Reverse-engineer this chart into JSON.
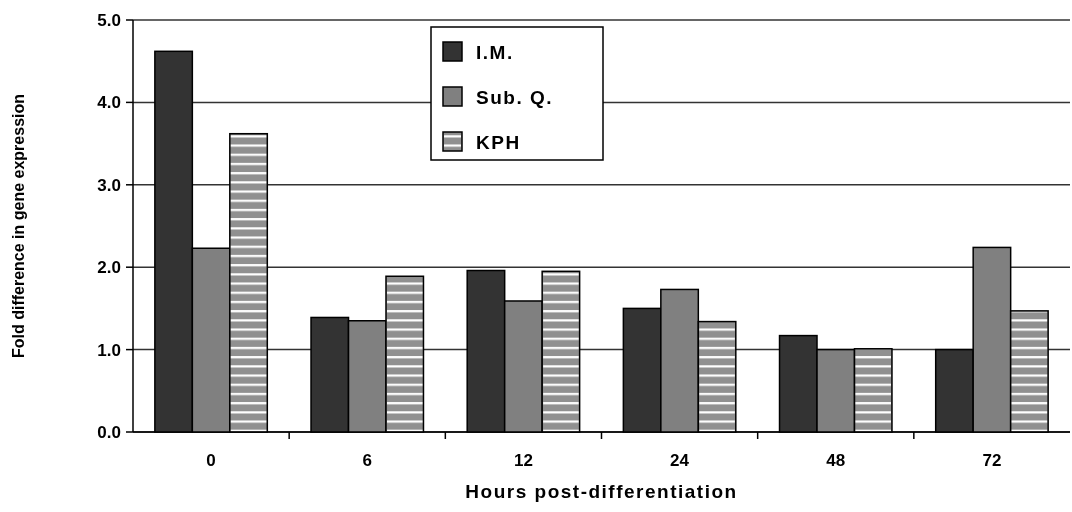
{
  "chart_data": {
    "type": "bar",
    "xlabel": "Hours post-differentiation",
    "ylabel": "Fold difference in gene expression",
    "categories": [
      "0",
      "6",
      "12",
      "24",
      "48",
      "72"
    ],
    "series": [
      {
        "name": "I.M.",
        "color": "#333333",
        "values": [
          4.62,
          1.39,
          1.96,
          1.5,
          1.17,
          1.0
        ]
      },
      {
        "name": "Sub. Q.",
        "color": "#808080",
        "values": [
          2.23,
          1.35,
          1.59,
          1.73,
          1.0,
          2.24
        ]
      },
      {
        "name": "KPH",
        "color": "#909090",
        "values": [
          3.62,
          1.89,
          1.95,
          1.34,
          1.01,
          1.47
        ]
      }
    ],
    "ylim": [
      0,
      5
    ],
    "yticks": [
      {
        "value": 0,
        "label": "0.0"
      },
      {
        "value": 1,
        "label": "1.0"
      },
      {
        "value": 2,
        "label": "2.0"
      },
      {
        "value": 3,
        "label": "3.0"
      },
      {
        "value": 4,
        "label": "4.0"
      },
      {
        "value": 5,
        "label": "5.0"
      }
    ],
    "grid": "y",
    "legend": "top"
  }
}
